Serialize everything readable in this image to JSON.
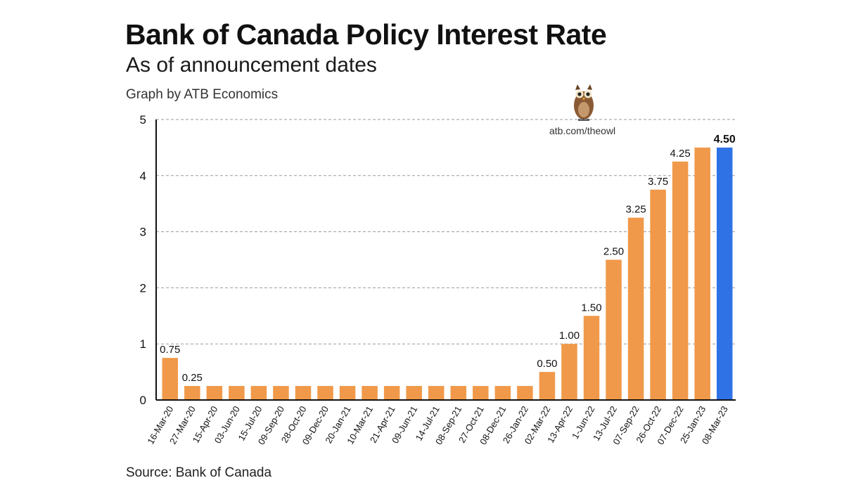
{
  "title": "Bank of Canada Policy Interest Rate",
  "subtitle": "As of announcement dates",
  "credit": "Graph by ATB Economics",
  "source": "Source: Bank of Canada",
  "brand": {
    "url": "atb.com/theowl",
    "icon": "owl-icon"
  },
  "colors": {
    "bar": "#F0994A",
    "highlight": "#2F72E6",
    "grid": "#9a9a9a",
    "axis": "#111111"
  },
  "chart_data": {
    "type": "bar",
    "title": "Bank of Canada Policy Interest Rate",
    "subtitle": "As of announcement dates",
    "xlabel": "",
    "ylabel": "",
    "ylim": [
      0,
      5
    ],
    "yticks": [
      0,
      1,
      2,
      3,
      4,
      5
    ],
    "grid": true,
    "categories": [
      "16-Mar-20",
      "27-Mar-20",
      "15-Apr-20",
      "03-Jun-20",
      "15-Jul-20",
      "09-Sep-20",
      "28-Oct-20",
      "09-Dec-20",
      "20-Jan-21",
      "10-Mar-21",
      "21-Apr-21",
      "09-Jun-21",
      "14-Jul-21",
      "08-Sep-21",
      "27-Oct-21",
      "08-Dec-21",
      "26-Jan-22",
      "02-Mar-22",
      "13-Apr-22",
      "1-Jun-22",
      "13-Jul-22",
      "07-Sep-22",
      "26-Oct-22",
      "07-Dec-22",
      "25-Jan-23",
      "08-Mar-23"
    ],
    "values": [
      0.75,
      0.25,
      0.25,
      0.25,
      0.25,
      0.25,
      0.25,
      0.25,
      0.25,
      0.25,
      0.25,
      0.25,
      0.25,
      0.25,
      0.25,
      0.25,
      0.25,
      0.5,
      1.0,
      1.5,
      2.5,
      3.25,
      3.75,
      4.25,
      4.5,
      4.5
    ],
    "data_labels": [
      "0.75",
      "0.25",
      "",
      "",
      "",
      "",
      "",
      "",
      "",
      "",
      "",
      "",
      "",
      "",
      "",
      "",
      "",
      "0.50",
      "1.00",
      "1.50",
      "2.50",
      "3.25",
      "3.75",
      "4.25",
      "",
      "4.50"
    ],
    "highlight_index": 25
  }
}
